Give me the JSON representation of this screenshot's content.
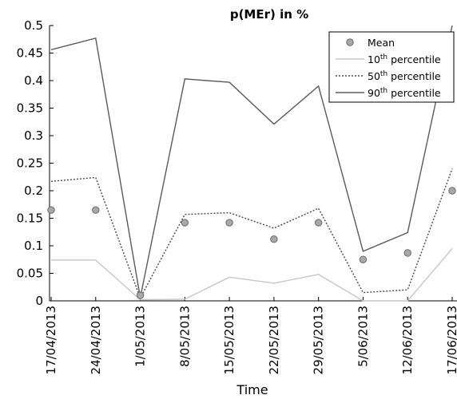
{
  "chart_data": {
    "type": "line",
    "title": "p(MEr) in %",
    "xlabel": "Time",
    "ylabel": "",
    "ylim": [
      0,
      0.5
    ],
    "yticks": [
      0,
      0.05,
      0.1,
      0.15,
      0.2,
      0.25,
      0.3,
      0.35,
      0.4,
      0.45,
      0.5
    ],
    "ytick_labels": [
      "0",
      "0.05",
      "0.1",
      "0.15",
      "0.2",
      "0.25",
      "0.3",
      "0.35",
      "0.4",
      "0.45",
      "0.5"
    ],
    "categories": [
      "17/04/2013",
      "24/04/2013",
      "1/05/2013",
      "8/05/2013",
      "15/05/2013",
      "22/05/2013",
      "29/05/2013",
      "5/06/2013",
      "12/06/2013",
      "17/06/2013"
    ],
    "legend_position": "top-right",
    "grid": false,
    "series": [
      {
        "name": "Mean",
        "style": "marker",
        "color": "#9a9a9a",
        "values": [
          0.165,
          0.165,
          0.01,
          0.142,
          0.142,
          0.112,
          0.142,
          0.075,
          0.087,
          0.2
        ]
      },
      {
        "name": "10",
        "name_sup": "th",
        "name_suffix": " percentile",
        "style": "solid-light",
        "color": "#c8c8c8",
        "values": [
          0.074,
          0.074,
          0.002,
          0.003,
          0.043,
          0.032,
          0.048,
          0.0,
          0.0,
          0.095
        ]
      },
      {
        "name": "50",
        "name_sup": "th",
        "name_suffix": " percentile",
        "style": "dotted",
        "color": "#555555",
        "values": [
          0.217,
          0.224,
          0.005,
          0.157,
          0.16,
          0.132,
          0.168,
          0.015,
          0.02,
          0.24
        ]
      },
      {
        "name": "90",
        "name_sup": "th",
        "name_suffix": " percentile",
        "style": "solid-dark",
        "color": "#555555",
        "values": [
          0.456,
          0.477,
          0.006,
          0.403,
          0.397,
          0.321,
          0.39,
          0.09,
          0.124,
          0.5
        ]
      }
    ]
  }
}
